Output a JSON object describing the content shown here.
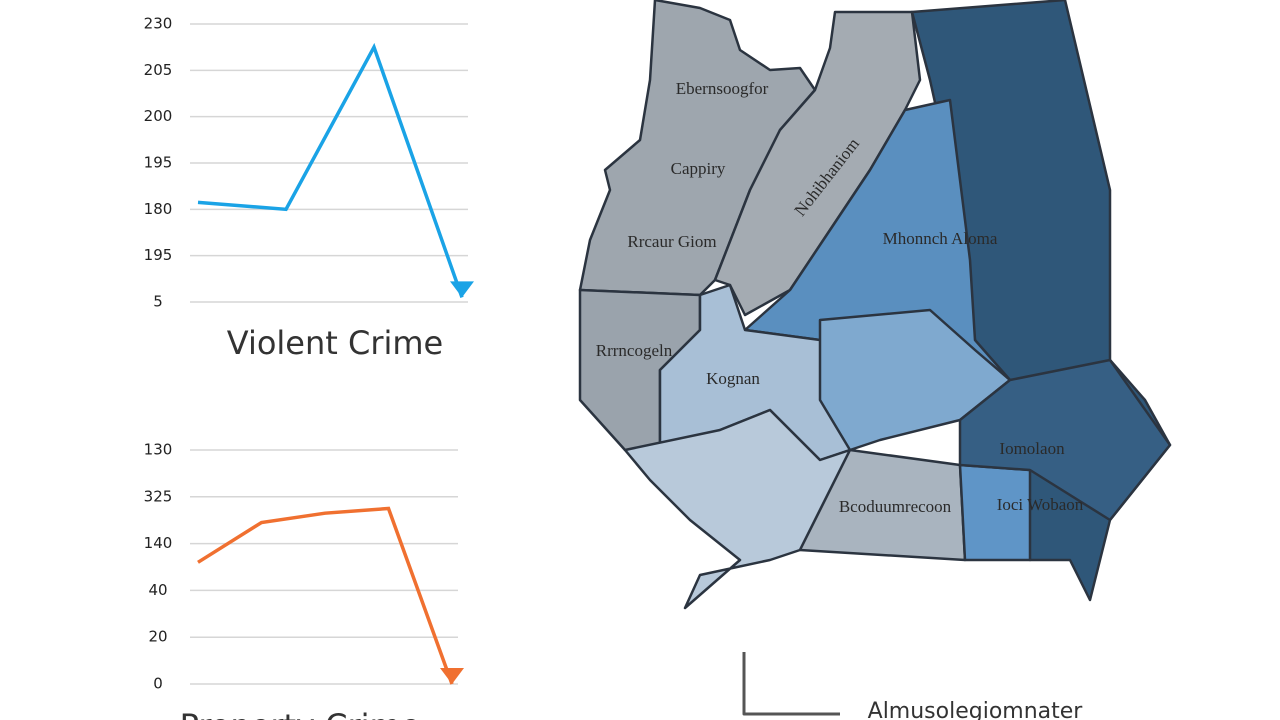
{
  "chart_data": [
    {
      "type": "line",
      "title": "Violent Crime",
      "y_labels": [
        "230",
        "205",
        "200",
        "195",
        "180",
        "195",
        "5"
      ],
      "ylim": [
        0,
        6
      ],
      "x": [
        0,
        1,
        2,
        3
      ],
      "xlim": [
        0,
        3
      ],
      "series": [
        {
          "color": "#1aa3e6",
          "values": [
            2.15,
            2.0,
            5.5,
            0.1
          ]
        }
      ]
    },
    {
      "type": "line",
      "title": "Property Crime",
      "y_labels": [
        "130",
        "325",
        "140",
        "40",
        "20",
        "0"
      ],
      "ylim": [
        0,
        5
      ],
      "x": [
        0,
        1,
        2,
        3,
        4
      ],
      "xlim": [
        0,
        4
      ],
      "series": [
        {
          "color": "#f07030",
          "values": [
            2.6,
            3.45,
            3.65,
            3.75,
            0
          ]
        }
      ]
    }
  ],
  "map": {
    "labels": [
      "Ebernsoogfor",
      "Cappiry",
      "Rrcaur Giom",
      "Nohibhaniom",
      "Mhonnch Aloma",
      "Rrrncogeln",
      "Kognan",
      "Iomolaon",
      "Bcoduumrecoon",
      "Ioci Wobaon"
    ],
    "legend": "Almusolegiomnater"
  }
}
